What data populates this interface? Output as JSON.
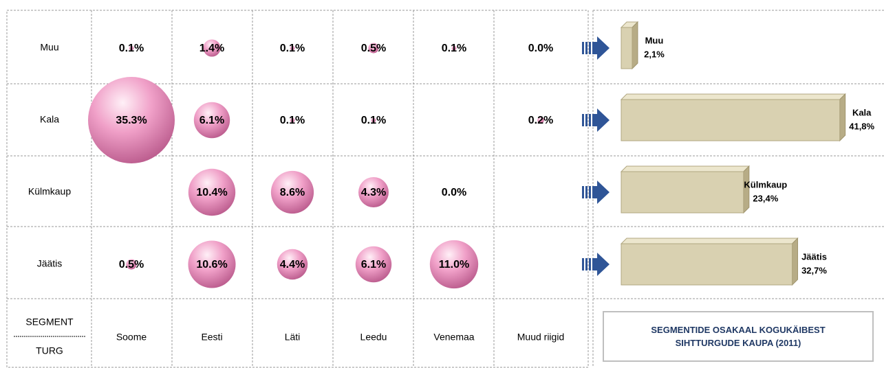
{
  "chart_data": {
    "type": "bubble",
    "title": "SEGMENTIDE OSAKAAL KOGUKÄIBEST SIHTTURGUDE KAUPA (2011)",
    "row_axis_label": "SEGMENT",
    "column_axis_label": "TURG",
    "categories": [
      "Soome",
      "Eesti",
      "Läti",
      "Leedu",
      "Venemaa",
      "Muud riigid"
    ],
    "bubble_color": "#f0a0c8",
    "series": [
      {
        "name": "Muu",
        "values": [
          0.1,
          1.4,
          0.1,
          0.5,
          0.1,
          0.0
        ],
        "value_labels": [
          "0.1%",
          "1.4%",
          "0.1%",
          "0.5%",
          "0.1%",
          "0.0%"
        ]
      },
      {
        "name": "Kala",
        "values": [
          35.3,
          6.1,
          0.1,
          0.1,
          null,
          0.2
        ],
        "value_labels": [
          "35.3%",
          "6.1%",
          "0.1%",
          "0.1%",
          null,
          "0.2%"
        ]
      },
      {
        "name": "Külmkaup",
        "values": [
          null,
          10.4,
          8.6,
          4.3,
          0.0,
          null
        ],
        "value_labels": [
          null,
          "10.4%",
          "8.6%",
          "4.3%",
          "0.0%",
          null
        ]
      },
      {
        "name": "Jäätis",
        "values": [
          0.5,
          10.6,
          4.4,
          6.1,
          11.0,
          null
        ],
        "value_labels": [
          "0.5%",
          "10.6%",
          "4.4%",
          "6.1%",
          "11.0%",
          null
        ]
      }
    ],
    "totals": {
      "color": "#d9d1b1",
      "values": [
        2.1,
        41.8,
        23.4,
        32.7
      ],
      "value_labels": [
        "2,1%",
        "41,8%",
        "23,4%",
        "32,7%"
      ]
    }
  }
}
